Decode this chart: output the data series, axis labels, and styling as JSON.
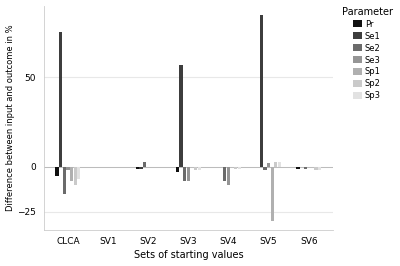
{
  "categories": [
    "CLCA",
    "SV1",
    "SV2",
    "SV3",
    "SV4",
    "SV5",
    "SV6"
  ],
  "parameters": [
    "Pr",
    "Se1",
    "Se2",
    "Se3",
    "Sp1",
    "Sp2",
    "Sp3"
  ],
  "colors": [
    "#111111",
    "#3d3d3d",
    "#6b6b6b",
    "#959595",
    "#b0b0b0",
    "#cacaca",
    "#e2e2e2"
  ],
  "values": {
    "Pr": [
      -5,
      0,
      -1,
      -3,
      0,
      0,
      -1
    ],
    "Se1": [
      75,
      0,
      -1,
      57,
      0,
      85,
      0
    ],
    "Se2": [
      -15,
      0,
      3,
      -8,
      -8,
      -2,
      -1
    ],
    "Se3": [
      -2,
      0,
      0,
      -8,
      -10,
      2,
      0
    ],
    "Sp1": [
      -8,
      0,
      0,
      0,
      0,
      -30,
      0
    ],
    "Sp2": [
      -10,
      0,
      0,
      -2,
      -1,
      3,
      -2
    ],
    "Sp3": [
      -7,
      0,
      0,
      -2,
      -1,
      3,
      -2
    ]
  },
  "ylabel": "Difference between input and outcome in %",
  "xlabel": "Sets of starting values",
  "legend_title": "Parameter",
  "ylim": [
    -35,
    90
  ],
  "yticks": [
    -25,
    0,
    50
  ],
  "panel_background": "#ffffff",
  "figure_background": "#ffffff",
  "grid_color": "#e8e8e8",
  "bar_width": 0.09,
  "spine_color": "#cccccc"
}
